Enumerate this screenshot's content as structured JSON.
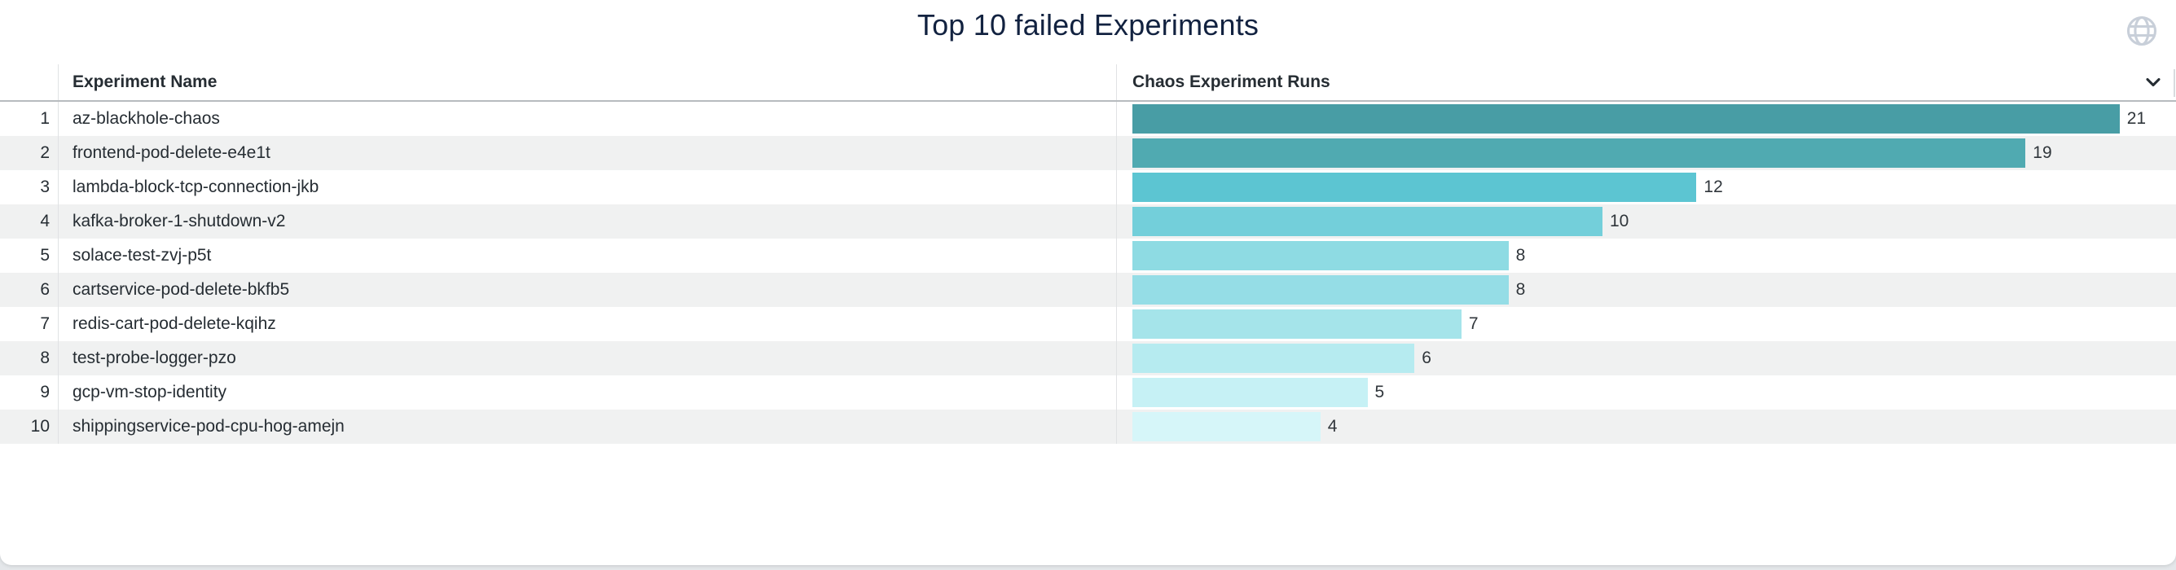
{
  "tile": {
    "title": "Top 10 failed Experiments"
  },
  "icons": {
    "top_right": "globe-icon",
    "header_menu": "chevron-down-icon"
  },
  "colors": {
    "title_text": "#122240",
    "body_text": "#262d33",
    "zebra_stripe": "#f0f1f1",
    "header_border": "#b7bbbf",
    "column_divider": "#e0e2e4",
    "globe_icon": "#c8cfd9"
  },
  "table": {
    "columns": [
      "Experiment Name",
      "Chaos Experiment Runs"
    ],
    "rows": [
      {
        "rank": "1",
        "name": "az-blackhole-chaos",
        "runs": 21,
        "bar_color": "#489da5"
      },
      {
        "rank": "2",
        "name": "frontend-pod-delete-e4e1t",
        "runs": 19,
        "bar_color": "#50aab1"
      },
      {
        "rank": "3",
        "name": "lambda-block-tcp-connection-jkb",
        "runs": 12,
        "bar_color": "#5cc5d2"
      },
      {
        "rank": "4",
        "name": "kafka-broker-1-shutdown-v2",
        "runs": 10,
        "bar_color": "#73cfda"
      },
      {
        "rank": "5",
        "name": "solace-test-zvj-p5t",
        "runs": 8,
        "bar_color": "#8edbe3"
      },
      {
        "rank": "6",
        "name": "cartservice-pod-delete-bkfb5",
        "runs": 8,
        "bar_color": "#95dde6"
      },
      {
        "rank": "7",
        "name": "redis-cart-pod-delete-kqihz",
        "runs": 7,
        "bar_color": "#a5e4ea"
      },
      {
        "rank": "8",
        "name": "test-probe-logger-pzo",
        "runs": 6,
        "bar_color": "#b6ebf0"
      },
      {
        "rank": "9",
        "name": "gcp-vm-stop-identity",
        "runs": 5,
        "bar_color": "#c6f1f5"
      },
      {
        "rank": "10",
        "name": "shippingservice-pod-cpu-hog-amejn",
        "runs": 4,
        "bar_color": "#d6f6f9"
      }
    ]
  },
  "chart_data": {
    "type": "bar",
    "orientation": "horizontal",
    "title": "Top 10 failed Experiments",
    "categories": [
      "az-blackhole-chaos",
      "frontend-pod-delete-e4e1t",
      "lambda-block-tcp-connection-jkb",
      "kafka-broker-1-shutdown-v2",
      "solace-test-zvj-p5t",
      "cartservice-pod-delete-bkfb5",
      "redis-cart-pod-delete-kqihz",
      "test-probe-logger-pzo",
      "gcp-vm-stop-identity",
      "shippingservice-pod-cpu-hog-amejn"
    ],
    "values": [
      21,
      19,
      12,
      10,
      8,
      8,
      7,
      6,
      5,
      4
    ],
    "series_label": "Chaos Experiment Runs",
    "xlabel": "Chaos Experiment Runs",
    "ylabel": "Experiment Name",
    "xlim": [
      0,
      22.2
    ],
    "grid": false,
    "legend": false,
    "value_labels": true,
    "palette": [
      "#489da5",
      "#50aab1",
      "#5cc5d2",
      "#73cfda",
      "#8edbe3",
      "#95dde6",
      "#a5e4ea",
      "#b6ebf0",
      "#c6f1f5",
      "#d6f6f9"
    ]
  }
}
